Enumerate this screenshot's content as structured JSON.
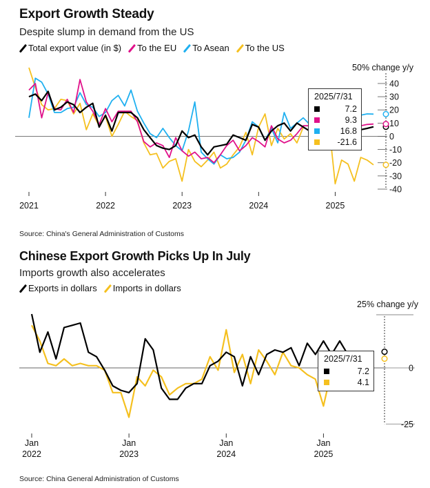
{
  "chart_data": [
    {
      "type": "line",
      "title": "Export Growth Steady",
      "subtitle": "Despite slump in demand from the US",
      "unit_label": "50% change y/y",
      "source": "Source: China's General Administration of Customs",
      "x_tick_labels": [
        "2021",
        "2022",
        "2023",
        "2024",
        "2025"
      ],
      "x_tick_positions": [
        0,
        12,
        24,
        36,
        48
      ],
      "y_ticks": [
        40,
        30,
        20,
        10,
        0,
        -10,
        -20,
        -30,
        -40
      ],
      "y_tick_labels": [
        "40",
        "30",
        "20",
        "10",
        "0",
        "-10",
        "-20",
        "-30",
        "-40"
      ],
      "ylim": [
        -40,
        52
      ],
      "xlim": [
        0,
        54
      ],
      "tooltip": {
        "date": "2025/7/31"
      },
      "series": [
        {
          "name": "Total export value (in $)",
          "color": "#000000",
          "last": 7.2,
          "last_label": "7.2",
          "x": [
            0,
            1,
            2,
            3,
            4,
            5,
            6,
            7,
            8,
            9,
            10,
            11,
            12,
            13,
            14,
            15,
            16,
            17,
            18,
            19,
            20,
            21,
            22,
            23,
            24,
            25,
            26,
            27,
            28,
            29,
            30,
            31,
            32,
            33,
            34,
            35,
            36,
            37,
            38,
            39,
            40,
            41,
            42,
            43,
            44,
            45,
            46,
            47,
            48,
            49,
            50,
            51,
            52,
            53,
            54
          ],
          "values": [
            30,
            32,
            27,
            34,
            20,
            22,
            26,
            24,
            18,
            22,
            25,
            7,
            16,
            4,
            18,
            18,
            18,
            14,
            5,
            -1,
            -7,
            -9,
            -10,
            -7,
            4,
            -1,
            1,
            -8,
            -14,
            -8,
            -7,
            -6,
            1,
            -1,
            -3,
            9,
            7,
            -3,
            4,
            8,
            10,
            4,
            10,
            7,
            4,
            8,
            5,
            6,
            5,
            8,
            6,
            4,
            5,
            6,
            7.2
          ]
        },
        {
          "name": "To the EU",
          "color": "#e0118a",
          "last": 9.3,
          "last_label": "9.3",
          "x": [
            0,
            1,
            2,
            3,
            4,
            5,
            6,
            7,
            8,
            9,
            10,
            11,
            12,
            13,
            14,
            15,
            16,
            17,
            18,
            19,
            20,
            21,
            22,
            23,
            24,
            25,
            26,
            27,
            28,
            29,
            30,
            31,
            32,
            33,
            34,
            35,
            36,
            37,
            38,
            39,
            40,
            41,
            42,
            43,
            44,
            45,
            46,
            47,
            48,
            49,
            50,
            51,
            52,
            53,
            54
          ],
          "values": [
            35,
            40,
            14,
            33,
            21,
            20,
            28,
            18,
            43,
            26,
            19,
            9,
            21,
            11,
            19,
            19,
            19,
            11,
            -4,
            -8,
            -5,
            -7,
            -16,
            -1,
            -11,
            -15,
            -12,
            -17,
            -16,
            -20,
            -14,
            -7,
            -3,
            -11,
            -7,
            -1,
            -4,
            -8,
            8,
            -2,
            -5,
            -3,
            2,
            8,
            8,
            3,
            5,
            7,
            8,
            10,
            8,
            6,
            8,
            9,
            9.3
          ]
        },
        {
          "name": "To Asean",
          "color": "#1fb0f0",
          "last": 16.8,
          "last_label": "16.8",
          "x": [
            0,
            1,
            2,
            3,
            4,
            5,
            6,
            7,
            8,
            9,
            10,
            11,
            12,
            13,
            14,
            15,
            16,
            17,
            18,
            19,
            20,
            21,
            22,
            23,
            24,
            25,
            26,
            27,
            28,
            29,
            30,
            31,
            32,
            33,
            34,
            35,
            36,
            37,
            38,
            39,
            40,
            41,
            42,
            43,
            44,
            45,
            46,
            47,
            48,
            49,
            50,
            51,
            52,
            53,
            54
          ],
          "values": [
            14,
            44,
            41,
            32,
            18,
            18,
            21,
            22,
            33,
            24,
            22,
            15,
            18,
            27,
            31,
            23,
            35,
            19,
            10,
            2,
            -1,
            6,
            -1,
            -7,
            -11,
            4,
            26,
            -12,
            -17,
            -21,
            -14,
            -17,
            -16,
            -12,
            -3,
            11,
            7,
            -3,
            6,
            -5,
            18,
            6,
            10,
            14,
            9,
            7,
            12,
            10,
            16,
            15,
            18,
            14,
            16,
            17,
            16.8
          ]
        },
        {
          "name": "To the US",
          "color": "#f5c01f",
          "last": -21.6,
          "last_label": "-21.6",
          "x": [
            0,
            1,
            2,
            3,
            4,
            5,
            6,
            7,
            8,
            9,
            10,
            11,
            12,
            13,
            14,
            15,
            16,
            17,
            18,
            19,
            20,
            21,
            22,
            23,
            24,
            25,
            26,
            27,
            28,
            29,
            30,
            31,
            32,
            33,
            34,
            35,
            36,
            37,
            38,
            39,
            40,
            41,
            42,
            43,
            44,
            45,
            46,
            47,
            48,
            49,
            50,
            51,
            52,
            53,
            54
          ],
          "values": [
            52,
            37,
            24,
            20,
            21,
            28,
            27,
            17,
            25,
            5,
            17,
            8,
            15,
            0,
            9,
            19,
            15,
            12,
            -5,
            -14,
            -13,
            -24,
            -19,
            -17,
            -34,
            -10,
            -19,
            -23,
            -18,
            -12,
            -24,
            -21,
            -14,
            -8,
            3,
            -14,
            7,
            17,
            -7,
            6,
            -2,
            2,
            -5,
            7,
            4,
            8,
            8,
            10,
            -36,
            -18,
            -21,
            -34,
            -16,
            -18,
            -21.6
          ]
        }
      ]
    },
    {
      "type": "line",
      "title": "Chinese Export Growth Picks Up In July",
      "subtitle": "Imports growth also accelerates",
      "unit_label": "25% change y/y",
      "source": "Source: China General Administration of Customs",
      "x_tick_labels": [
        [
          "Jan",
          "2022"
        ],
        [
          "Jan",
          "2023"
        ],
        [
          "Jan",
          "2024"
        ],
        [
          "Jan",
          "2025"
        ]
      ],
      "x_tick_positions": [
        0,
        12,
        24,
        36
      ],
      "y_ticks": [
        0,
        -25
      ],
      "y_tick_labels": [
        "0",
        "-25"
      ],
      "ylim": [
        -28,
        28
      ],
      "xlim": [
        0,
        42
      ],
      "tooltip": {
        "date": "2025/7/31"
      },
      "series": [
        {
          "name": "Exports in dollars",
          "color": "#000000",
          "last": 7.2,
          "last_label": "7.2",
          "x": [
            0,
            1,
            2,
            3,
            4,
            5,
            6,
            7,
            8,
            9,
            10,
            11,
            12,
            13,
            14,
            15,
            16,
            17,
            18,
            19,
            20,
            21,
            22,
            23,
            24,
            25,
            26,
            27,
            28,
            29,
            30,
            31,
            32,
            33,
            34,
            35,
            36,
            37,
            38,
            39,
            40,
            41,
            42
          ],
          "values": [
            24,
            7,
            16,
            4,
            18,
            19,
            20,
            7,
            5,
            -1,
            -8,
            -10,
            -11,
            -7,
            13,
            8,
            -9,
            -14,
            -14,
            -9,
            -7,
            -7,
            1,
            3,
            7,
            5,
            -8,
            5,
            -3,
            6,
            8,
            7,
            9,
            1,
            11,
            6,
            12,
            6,
            12,
            6,
            5,
            6,
            7.2
          ]
        },
        {
          "name": "Imports in dollars",
          "color": "#f5c01f",
          "last": 4.1,
          "last_label": "4.1",
          "x": [
            0,
            1,
            2,
            3,
            4,
            5,
            6,
            7,
            8,
            9,
            10,
            11,
            12,
            13,
            14,
            15,
            16,
            17,
            18,
            19,
            20,
            21,
            22,
            23,
            24,
            25,
            26,
            27,
            28,
            29,
            30,
            31,
            32,
            33,
            34,
            35,
            36,
            37,
            38,
            39,
            40,
            41,
            42
          ],
          "values": [
            19,
            12,
            2,
            1,
            4,
            1,
            2,
            1,
            1,
            -1,
            -11,
            -11,
            -22,
            -4,
            -8,
            -1,
            -4,
            -12,
            -9,
            -7,
            -7,
            -5,
            5,
            -1,
            17,
            -2,
            6,
            -7,
            8,
            3,
            -3,
            7,
            1,
            0,
            -3,
            -5,
            -17,
            -1,
            5,
            -1,
            1,
            4,
            4.1
          ]
        }
      ]
    }
  ]
}
